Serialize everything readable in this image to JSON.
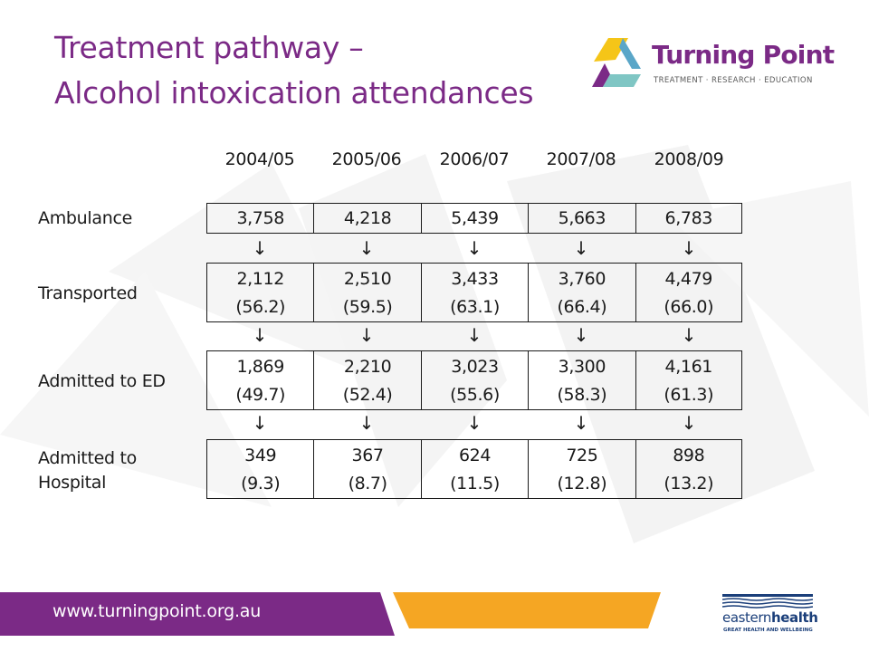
{
  "title": {
    "line1": "Treatment pathway –",
    "line2": "Alcohol intoxication attendances"
  },
  "logo": {
    "name": "Turning Point",
    "tagline": "TREATMENT · RESEARCH · EDUCATION"
  },
  "colors": {
    "title": "#7b2a86",
    "footer_purple": "#7b2a86",
    "footer_orange": "#f5a623",
    "eastern_health_blue": "#1b3f7a"
  },
  "arrow_glyph": "↓",
  "table": {
    "years": [
      "2004/05",
      "2005/06",
      "2006/07",
      "2007/08",
      "2008/09"
    ],
    "rows": [
      {
        "label": "Ambulance",
        "values": [
          "3,758",
          "4,218",
          "5,439",
          "5,663",
          "6,783"
        ],
        "percents": []
      },
      {
        "label": "Transported",
        "values": [
          "2,112",
          "2,510",
          "3,433",
          "3,760",
          "4,479"
        ],
        "percents": [
          "(56.2)",
          "(59.5)",
          "(63.1)",
          "(66.4)",
          "(66.0)"
        ]
      },
      {
        "label": "Admitted to ED",
        "values": [
          "1,869",
          "2,210",
          "3,023",
          "3,300",
          "4,161"
        ],
        "percents": [
          "(49.7)",
          "(52.4)",
          "(55.6)",
          "(58.3)",
          "(61.3)"
        ]
      },
      {
        "label_line1": "Admitted to",
        "label_line2": "Hospital",
        "values": [
          "349",
          "367",
          "624",
          "725",
          "898"
        ],
        "percents": [
          "(9.3)",
          "(8.7)",
          "(11.5)",
          "(12.8)",
          "(13.2)"
        ]
      }
    ]
  },
  "footer": {
    "url": "www.turningpoint.org.au",
    "partner_name_regular": "eastern",
    "partner_name_bold": "health",
    "partner_tagline": "GREAT HEALTH AND WELLBEING"
  }
}
